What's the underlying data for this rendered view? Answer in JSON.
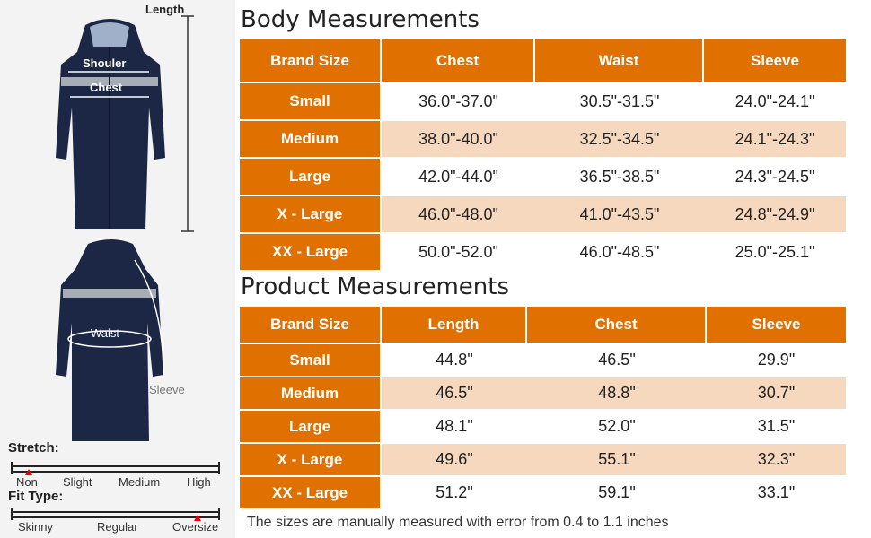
{
  "illustration": {
    "length_label": "Length",
    "shoulder_label": "Shouler",
    "chest_label": "Chest",
    "waist_label": "Waist",
    "sleeve_label": "Sleeve",
    "coat_color": "#1c2745",
    "stripe_color": "#a7adb5"
  },
  "stretch": {
    "title": "Stretch:",
    "levels": [
      "Non",
      "Slight",
      "Medium",
      "High"
    ],
    "selected": "Non"
  },
  "fit_type": {
    "title": "Fit Type:",
    "levels": [
      "Skinny",
      "Regular",
      "Oversize"
    ],
    "selected": "Oversize"
  },
  "colors": {
    "header_orange": "#e07000",
    "row_highlight": "#f5d8bd",
    "marker_red": "#e00000"
  },
  "body_measurements": {
    "title": "Body Measurements",
    "headers": [
      "Brand Size",
      "Chest",
      "Waist",
      "Sleeve"
    ],
    "rows": [
      {
        "size": "Small",
        "chest": "36.0\"-37.0\"",
        "waist": "30.5\"-31.5\"",
        "sleeve": "24.0\"-24.1\""
      },
      {
        "size": "Medium",
        "chest": "38.0\"-40.0\"",
        "waist": "32.5\"-34.5\"",
        "sleeve": "24.1\"-24.3\""
      },
      {
        "size": "Large",
        "chest": "42.0\"-44.0\"",
        "waist": "36.5\"-38.5\"",
        "sleeve": "24.3\"-24.5\""
      },
      {
        "size": "X - Large",
        "chest": "46.0\"-48.0\"",
        "waist": "41.0\"-43.5\"",
        "sleeve": "24.8\"-24.9\""
      },
      {
        "size": "XX - Large",
        "chest": "50.0\"-52.0\"",
        "waist": "46.0\"-48.5\"",
        "sleeve": "25.0\"-25.1\""
      }
    ]
  },
  "product_measurements": {
    "title": "Product Measurements",
    "headers": [
      "Brand Size",
      "Length",
      "Chest",
      "Sleeve"
    ],
    "rows": [
      {
        "size": "Small",
        "length": "44.8\"",
        "chest": "46.5\"",
        "sleeve": "29.9\""
      },
      {
        "size": "Medium",
        "length": "46.5\"",
        "chest": "48.8\"",
        "sleeve": "30.7\""
      },
      {
        "size": "Large",
        "length": "48.1\"",
        "chest": "52.0\"",
        "sleeve": "31.5\""
      },
      {
        "size": "X - Large",
        "length": "49.6\"",
        "chest": "55.1\"",
        "sleeve": "32.3\""
      },
      {
        "size": "XX - Large",
        "length": "51.2\"",
        "chest": "59.1\"",
        "sleeve": "33.1\""
      }
    ]
  },
  "footnote": "The sizes are manually measured with error from 0.4 to 1.1 inches"
}
